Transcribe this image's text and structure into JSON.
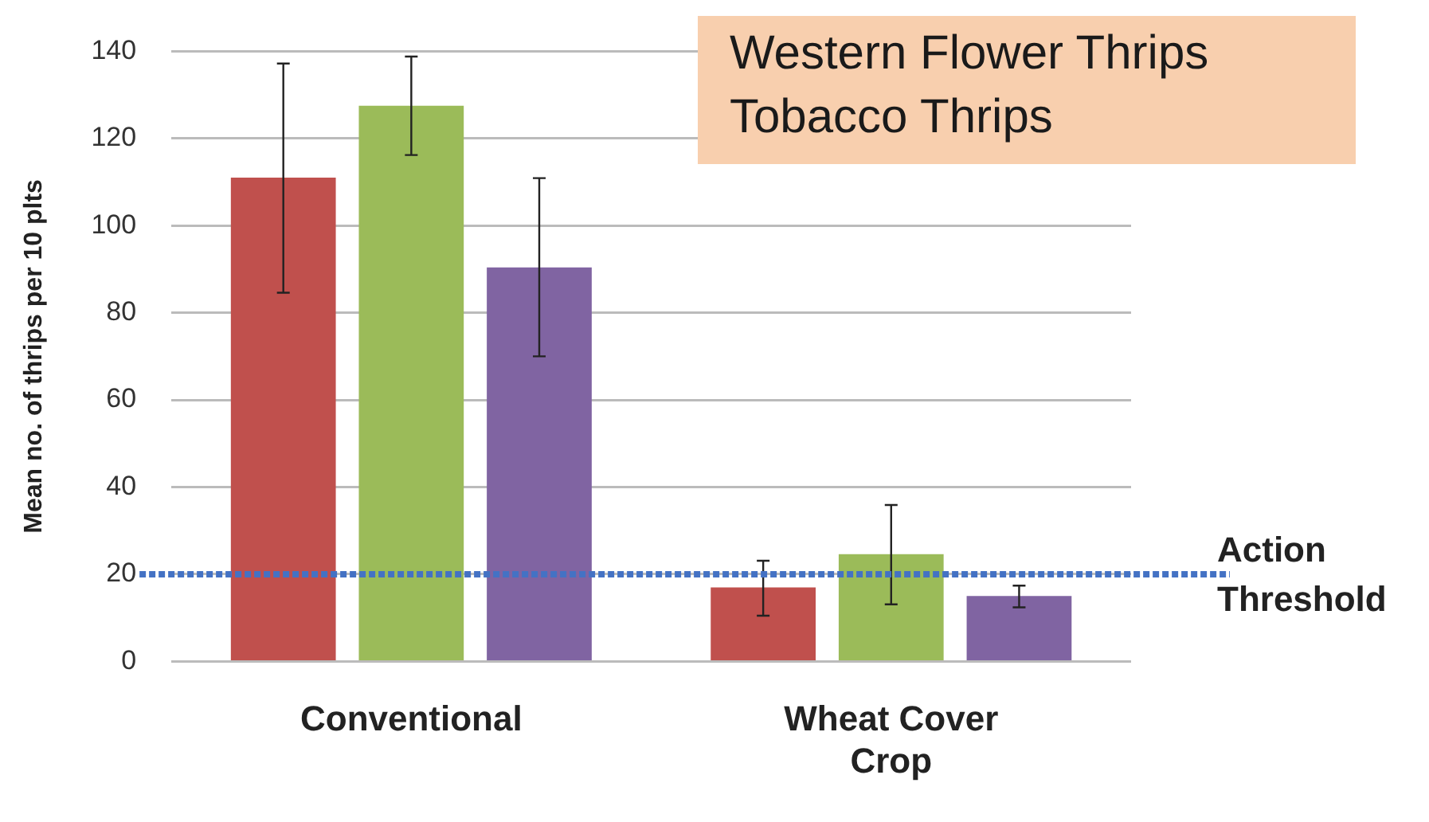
{
  "chart_data": {
    "type": "bar",
    "ylabel": "Mean no. of thrips per 10 plts",
    "categories": [
      "Conventional",
      "Wheat Cover Crop"
    ],
    "series": [
      {
        "color": "#c0504d",
        "values": [
          111,
          17
        ],
        "errors": [
          [
            84.6,
            137.2
          ],
          [
            10.5,
            23.1
          ]
        ]
      },
      {
        "color": "#9bbb59",
        "values": [
          127.5,
          24.6
        ],
        "errors": [
          [
            116.2,
            138.8
          ],
          [
            13.1,
            35.9
          ]
        ]
      },
      {
        "color": "#8064a2",
        "values": [
          90.4,
          15
        ],
        "errors": [
          [
            70,
            110.9
          ],
          [
            12.4,
            17.4
          ]
        ]
      }
    ],
    "ylim": [
      0,
      140
    ],
    "yticks": [
      0,
      20,
      40,
      60,
      80,
      100,
      120,
      140
    ],
    "grid": "y",
    "legend": false,
    "ref_lines": [
      {
        "axis": "y",
        "value": 20,
        "label": "Action Threshold",
        "color": "#4472c4",
        "line_style": "dotted"
      }
    ],
    "annotations": [
      "Western Flower Thrips",
      "Tobacco Thrips"
    ]
  }
}
